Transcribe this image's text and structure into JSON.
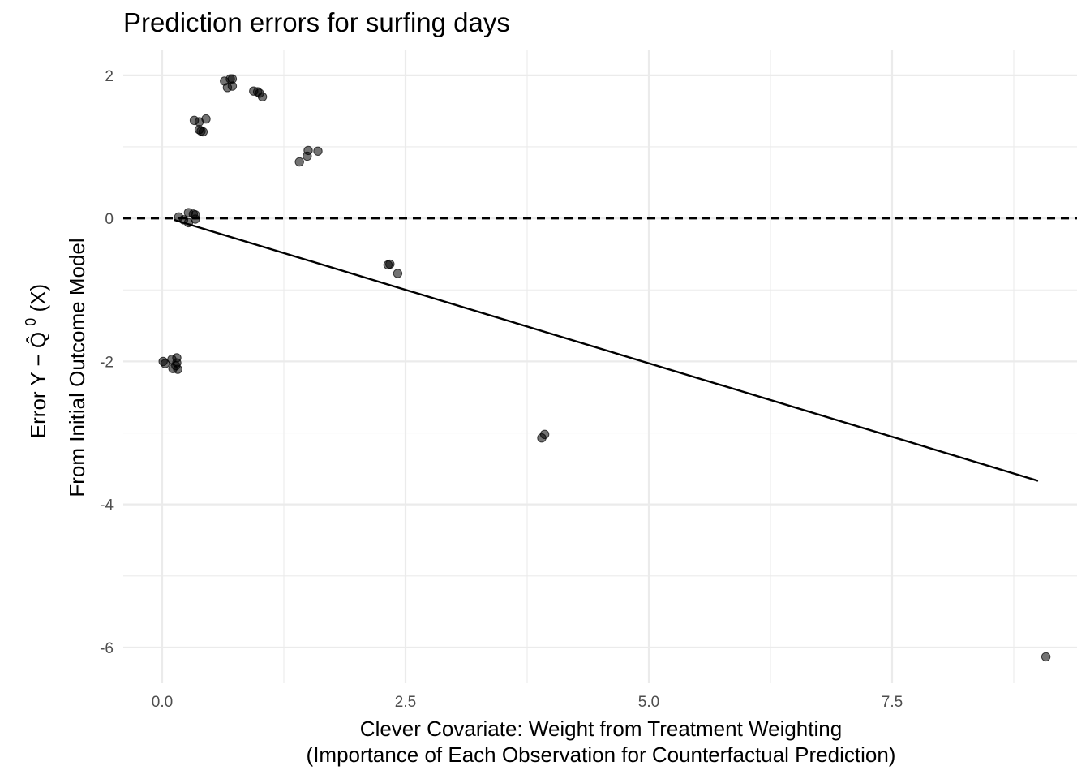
{
  "chart_data": {
    "type": "scatter",
    "title": "Prediction errors for surfing days",
    "xlabel_line1": "Clever Covariate: Weight from Treatment Weighting",
    "xlabel_line2": "(Importance of Each Observation for Counterfactual Prediction)",
    "ylabel_line1_prefix": "Error",
    "ylabel_line1_formula": "Y − Q̂",
    "ylabel_line1_sup": "0",
    "ylabel_line1_suffix": "(X)",
    "ylabel_line2": "From Initial Outcome Model",
    "xlim": [
      -0.4,
      9.4
    ],
    "ylim": [
      -6.5,
      2.35
    ],
    "x_ticks": [
      0.0,
      2.5,
      5.0,
      7.5
    ],
    "x_tick_labels": [
      "0.0",
      "2.5",
      "5.0",
      "7.5"
    ],
    "y_ticks": [
      2,
      0,
      -2,
      -4,
      -6
    ],
    "y_tick_labels": [
      "2",
      "0",
      "-2",
      "-4",
      "-6"
    ],
    "grid": true,
    "reference_line": {
      "y": 0,
      "style": "dashed"
    },
    "fit_line": {
      "x": [
        0.12,
        9.0
      ],
      "y": [
        -0.02,
        -3.67
      ]
    },
    "points": [
      {
        "x": 0.64,
        "y": 1.92
      },
      {
        "x": 0.7,
        "y": 1.95
      },
      {
        "x": 0.72,
        "y": 1.95
      },
      {
        "x": 0.67,
        "y": 1.83
      },
      {
        "x": 0.72,
        "y": 1.85
      },
      {
        "x": 0.94,
        "y": 1.78
      },
      {
        "x": 0.98,
        "y": 1.77
      },
      {
        "x": 1.0,
        "y": 1.75
      },
      {
        "x": 1.03,
        "y": 1.7
      },
      {
        "x": 0.33,
        "y": 1.37
      },
      {
        "x": 0.38,
        "y": 1.35
      },
      {
        "x": 0.45,
        "y": 1.39
      },
      {
        "x": 0.38,
        "y": 1.24
      },
      {
        "x": 0.4,
        "y": 1.22
      },
      {
        "x": 0.42,
        "y": 1.21
      },
      {
        "x": 1.5,
        "y": 0.95
      },
      {
        "x": 1.6,
        "y": 0.94
      },
      {
        "x": 1.49,
        "y": 0.87
      },
      {
        "x": 1.41,
        "y": 0.79
      },
      {
        "x": 0.17,
        "y": 0.02
      },
      {
        "x": 0.27,
        "y": 0.08
      },
      {
        "x": 0.32,
        "y": 0.06
      },
      {
        "x": 0.34,
        "y": 0.05
      },
      {
        "x": 0.22,
        "y": -0.02
      },
      {
        "x": 0.27,
        "y": -0.06
      },
      {
        "x": 0.34,
        "y": -0.01
      },
      {
        "x": 2.32,
        "y": -0.65
      },
      {
        "x": 2.34,
        "y": -0.64
      },
      {
        "x": 2.42,
        "y": -0.77
      },
      {
        "x": 0.01,
        "y": -2.0
      },
      {
        "x": 0.03,
        "y": -2.03
      },
      {
        "x": 0.1,
        "y": -1.97
      },
      {
        "x": 0.15,
        "y": -1.95
      },
      {
        "x": 0.15,
        "y": -2.02
      },
      {
        "x": 0.11,
        "y": -2.1
      },
      {
        "x": 0.16,
        "y": -2.11
      },
      {
        "x": 0.14,
        "y": -2.06
      },
      {
        "x": 3.93,
        "y": -3.02
      },
      {
        "x": 3.9,
        "y": -3.07
      },
      {
        "x": 9.08,
        "y": -6.13
      }
    ]
  }
}
